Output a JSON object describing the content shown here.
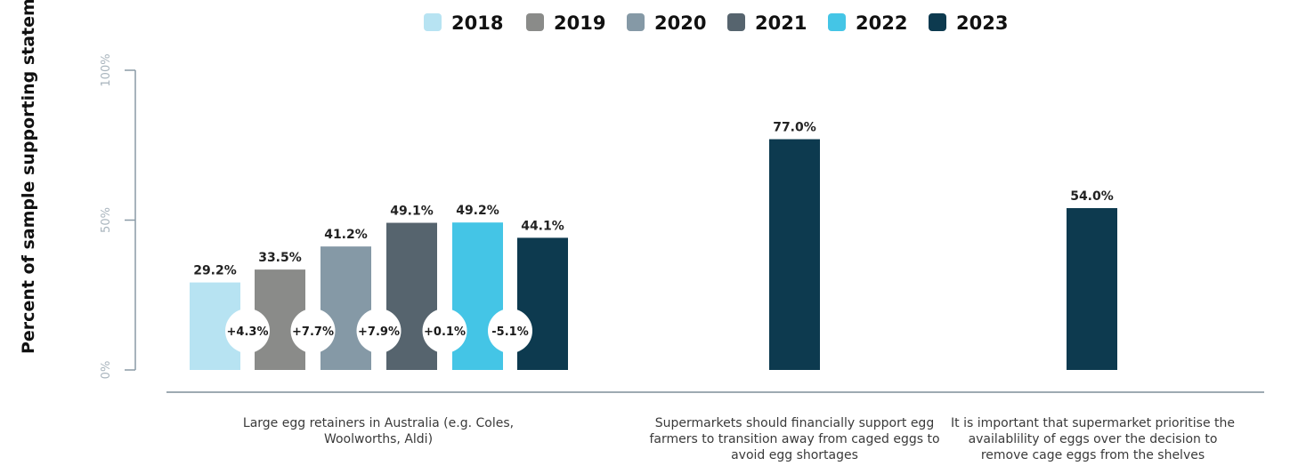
{
  "chart_data": {
    "type": "bar",
    "ylabel": "Percent of sample supporting statement",
    "ylim": [
      0,
      100
    ],
    "yticks": [
      {
        "value": 0,
        "label": "0%"
      },
      {
        "value": 50,
        "label": "50%"
      },
      {
        "value": 100,
        "label": "100%"
      }
    ],
    "legend": {
      "placement": "top",
      "entries": [
        {
          "name": "2018",
          "color": "#b7e3f2"
        },
        {
          "name": "2019",
          "color": "#8a8b89"
        },
        {
          "name": "2020",
          "color": "#8599a6"
        },
        {
          "name": "2021",
          "color": "#56646e"
        },
        {
          "name": "2022",
          "color": "#44c5e6"
        },
        {
          "name": "2023",
          "color": "#0d3a4f"
        }
      ]
    },
    "groups": [
      {
        "category": "Large egg retainers in Australia (e.g. Coles, Woolworths, Aldi)",
        "bars": [
          {
            "year": "2018",
            "value": 29.2,
            "label": "29.2%"
          },
          {
            "year": "2019",
            "value": 33.5,
            "label": "33.5%"
          },
          {
            "year": "2020",
            "value": 41.2,
            "label": "41.2%"
          },
          {
            "year": "2021",
            "value": 49.1,
            "label": "49.1%"
          },
          {
            "year": "2022",
            "value": 49.2,
            "label": "49.2%"
          },
          {
            "year": "2023",
            "value": 44.1,
            "label": "44.1%"
          }
        ],
        "changes": [
          "+4.3%",
          "+7.7%",
          "+7.9%",
          "+0.1%",
          "-5.1%"
        ]
      },
      {
        "category": "Supermarkets should financially support egg farmers to transition away from caged eggs to avoid egg shortages",
        "bars": [
          {
            "year": "2023",
            "value": 77.0,
            "label": "77.0%"
          }
        ],
        "changes": []
      },
      {
        "category": "It is important that supermarket prioritise the availablility of eggs over the decision to remove cage eggs from the shelves",
        "bars": [
          {
            "year": "2023",
            "value": 54.0,
            "label": "54.0%"
          }
        ],
        "changes": []
      }
    ]
  }
}
